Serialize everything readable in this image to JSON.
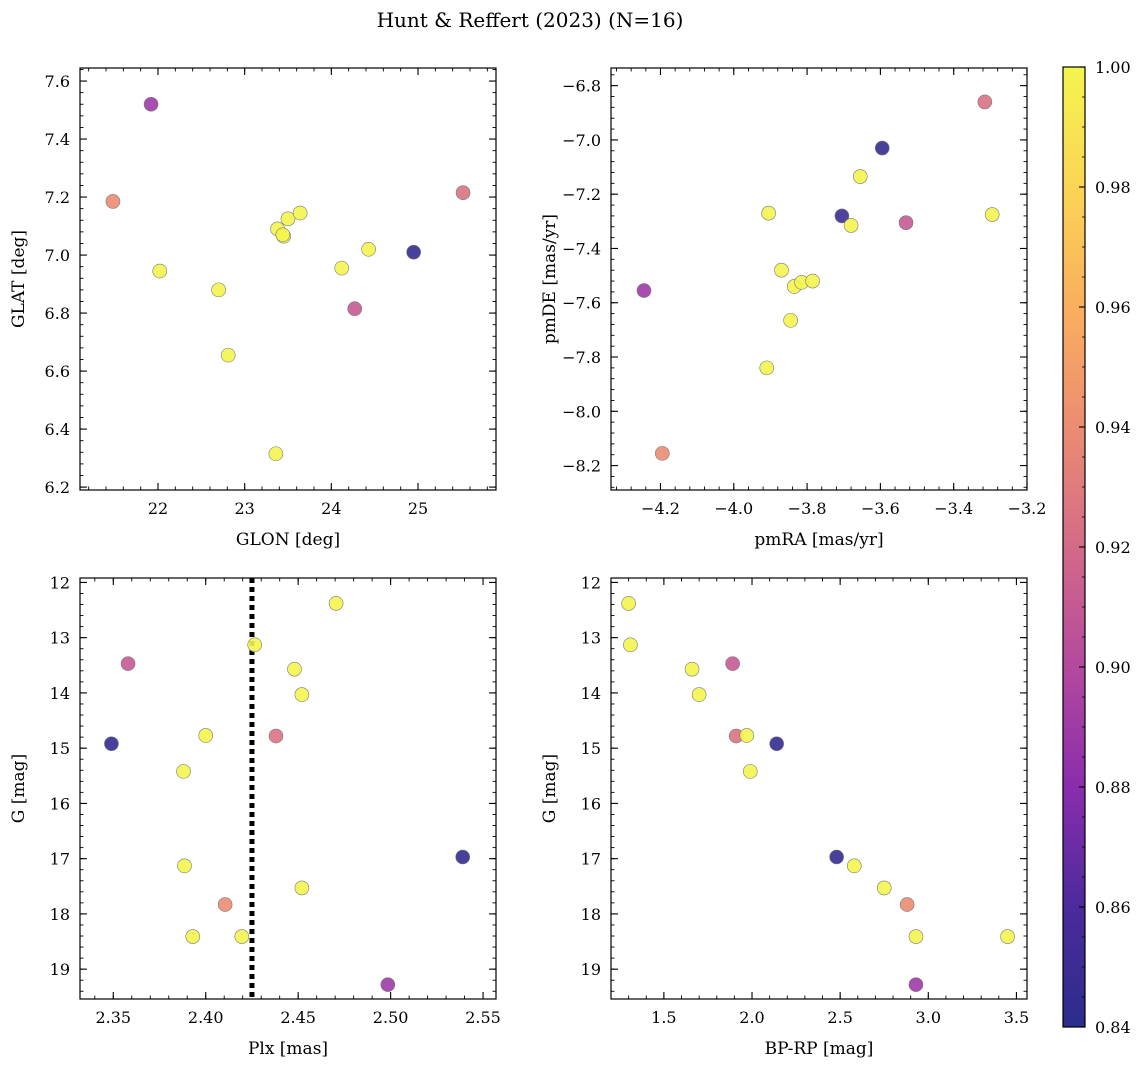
{
  "figure": {
    "title": "Hunt & Reffert (2023) (N=16)",
    "colorbar": {
      "min": 0.84,
      "max": 1.0,
      "ticks": [
        0.84,
        0.86,
        0.88,
        0.9,
        0.92,
        0.94,
        0.96,
        0.98,
        1.0
      ],
      "tick_labels": [
        "0.84",
        "0.86",
        "0.88",
        "0.90",
        "0.92",
        "0.94",
        "0.96",
        "0.98",
        "1.00"
      ],
      "colormap": "plasma"
    },
    "ref_line_color": "#000000"
  },
  "chart_data": [
    {
      "type": "scatter",
      "xlabel": "GLON [deg]",
      "ylabel": "GLAT [deg]",
      "xlim": [
        21.1,
        25.9
      ],
      "ylim": [
        6.19,
        7.645
      ],
      "xticks": [
        22,
        23,
        24,
        25
      ],
      "xtick_labels": [
        "22",
        "23",
        "24",
        "25"
      ],
      "yticks": [
        6.2,
        6.4,
        6.6,
        6.8,
        7.0,
        7.2,
        7.4,
        7.6
      ],
      "ytick_labels": [
        "6.2",
        "6.4",
        "6.6",
        "6.8",
        "7.0",
        "7.2",
        "7.4",
        "7.6"
      ],
      "points": [
        {
          "x": 21.92,
          "y": 7.52,
          "c": 0.89
        },
        {
          "x": 21.48,
          "y": 7.185,
          "c": 0.94
        },
        {
          "x": 25.52,
          "y": 7.215,
          "c": 0.925
        },
        {
          "x": 22.02,
          "y": 6.945,
          "c": 1.0
        },
        {
          "x": 22.7,
          "y": 6.88,
          "c": 1.0
        },
        {
          "x": 22.81,
          "y": 6.655,
          "c": 1.0
        },
        {
          "x": 23.36,
          "y": 6.315,
          "c": 1.0
        },
        {
          "x": 23.38,
          "y": 7.09,
          "c": 1.0
        },
        {
          "x": 23.5,
          "y": 7.125,
          "c": 1.0
        },
        {
          "x": 23.64,
          "y": 7.145,
          "c": 1.0
        },
        {
          "x": 23.45,
          "y": 7.065,
          "c": 1.0
        },
        {
          "x": 24.12,
          "y": 6.955,
          "c": 1.0
        },
        {
          "x": 24.43,
          "y": 7.02,
          "c": 1.0
        },
        {
          "x": 24.27,
          "y": 6.815,
          "c": 0.91
        },
        {
          "x": 24.95,
          "y": 7.01,
          "c": 0.845
        },
        {
          "x": 23.44,
          "y": 7.07,
          "c": 1.0
        }
      ]
    },
    {
      "type": "scatter",
      "xlabel": "pmRA [mas/yr]",
      "ylabel": "pmDE [mas/yr]",
      "xlim": [
        -4.335,
        -3.2
      ],
      "ylim": [
        -8.29,
        -6.735
      ],
      "xticks": [
        -4.2,
        -4.0,
        -3.8,
        -3.6,
        -3.4,
        -3.2
      ],
      "xtick_labels": [
        "−4.2",
        "−4.0",
        "−3.8",
        "−3.6",
        "−3.4",
        "−3.2"
      ],
      "yticks": [
        -8.2,
        -8.0,
        -7.8,
        -7.6,
        -7.4,
        -7.2,
        -7.0,
        -6.8
      ],
      "ytick_labels": [
        "−8.2",
        "−8.0",
        "−7.8",
        "−7.6",
        "−7.4",
        "−7.2",
        "−7.0",
        "−6.8"
      ],
      "points": [
        {
          "x": -3.315,
          "y": -6.86,
          "c": 0.925
        },
        {
          "x": -3.595,
          "y": -7.03,
          "c": 0.845
        },
        {
          "x": -3.655,
          "y": -7.135,
          "c": 1.0
        },
        {
          "x": -3.905,
          "y": -7.27,
          "c": 1.0
        },
        {
          "x": -3.705,
          "y": -7.28,
          "c": 0.85
        },
        {
          "x": -3.53,
          "y": -7.305,
          "c": 0.91
        },
        {
          "x": -3.295,
          "y": -7.275,
          "c": 1.0
        },
        {
          "x": -3.68,
          "y": -7.315,
          "c": 1.0
        },
        {
          "x": -4.245,
          "y": -7.555,
          "c": 0.89
        },
        {
          "x": -3.87,
          "y": -7.48,
          "c": 1.0
        },
        {
          "x": -3.835,
          "y": -7.54,
          "c": 1.0
        },
        {
          "x": -3.815,
          "y": -7.525,
          "c": 1.0
        },
        {
          "x": -3.785,
          "y": -7.52,
          "c": 1.0
        },
        {
          "x": -3.845,
          "y": -7.665,
          "c": 1.0
        },
        {
          "x": -3.91,
          "y": -7.84,
          "c": 1.0
        },
        {
          "x": -4.195,
          "y": -8.155,
          "c": 0.94
        }
      ]
    },
    {
      "type": "scatter",
      "xlabel": "Plx [mas]",
      "ylabel": "G [mag]",
      "xlim": [
        2.332,
        2.557
      ],
      "ylim": [
        19.54,
        11.92
      ],
      "y_inverted": true,
      "vline": 2.425,
      "xticks": [
        2.35,
        2.4,
        2.45,
        2.5,
        2.55
      ],
      "xtick_labels": [
        "2.35",
        "2.40",
        "2.45",
        "2.50",
        "2.55"
      ],
      "yticks": [
        12,
        13,
        14,
        15,
        16,
        17,
        18,
        19
      ],
      "ytick_labels": [
        "12",
        "13",
        "14",
        "15",
        "16",
        "17",
        "18",
        "19"
      ],
      "points": [
        {
          "x": 2.4705,
          "y": 12.38,
          "c": 1.0
        },
        {
          "x": 2.4265,
          "y": 13.13,
          "c": 1.0
        },
        {
          "x": 2.358,
          "y": 13.47,
          "c": 0.91
        },
        {
          "x": 2.448,
          "y": 13.57,
          "c": 1.0
        },
        {
          "x": 2.452,
          "y": 14.03,
          "c": 1.0
        },
        {
          "x": 2.4,
          "y": 14.77,
          "c": 1.0
        },
        {
          "x": 2.438,
          "y": 14.78,
          "c": 0.925
        },
        {
          "x": 2.349,
          "y": 14.92,
          "c": 0.845
        },
        {
          "x": 2.388,
          "y": 15.42,
          "c": 1.0
        },
        {
          "x": 2.539,
          "y": 16.97,
          "c": 0.845
        },
        {
          "x": 2.3885,
          "y": 17.13,
          "c": 1.0
        },
        {
          "x": 2.452,
          "y": 17.53,
          "c": 1.0
        },
        {
          "x": 2.4105,
          "y": 17.83,
          "c": 0.94
        },
        {
          "x": 2.393,
          "y": 18.41,
          "c": 1.0
        },
        {
          "x": 2.4195,
          "y": 18.41,
          "c": 1.0
        },
        {
          "x": 2.4985,
          "y": 19.28,
          "c": 0.89
        }
      ]
    },
    {
      "type": "scatter",
      "xlabel": "BP-RP [mag]",
      "ylabel": "G [mag]",
      "xlim": [
        1.2,
        3.56
      ],
      "ylim": [
        19.54,
        11.92
      ],
      "y_inverted": true,
      "xticks": [
        1.5,
        2.0,
        2.5,
        3.0,
        3.5
      ],
      "xtick_labels": [
        "1.5",
        "2.0",
        "2.5",
        "3.0",
        "3.5"
      ],
      "yticks": [
        12,
        13,
        14,
        15,
        16,
        17,
        18,
        19
      ],
      "ytick_labels": [
        "12",
        "13",
        "14",
        "15",
        "16",
        "17",
        "18",
        "19"
      ],
      "points": [
        {
          "x": 1.3,
          "y": 12.38,
          "c": 1.0
        },
        {
          "x": 1.31,
          "y": 13.13,
          "c": 1.0
        },
        {
          "x": 1.89,
          "y": 13.47,
          "c": 0.91
        },
        {
          "x": 1.66,
          "y": 13.57,
          "c": 1.0
        },
        {
          "x": 1.7,
          "y": 14.03,
          "c": 1.0
        },
        {
          "x": 1.91,
          "y": 14.78,
          "c": 0.925
        },
        {
          "x": 1.97,
          "y": 14.77,
          "c": 1.0
        },
        {
          "x": 2.14,
          "y": 14.92,
          "c": 0.845
        },
        {
          "x": 1.99,
          "y": 15.42,
          "c": 1.0
        },
        {
          "x": 2.48,
          "y": 16.97,
          "c": 0.845
        },
        {
          "x": 2.58,
          "y": 17.13,
          "c": 1.0
        },
        {
          "x": 2.75,
          "y": 17.53,
          "c": 1.0
        },
        {
          "x": 2.88,
          "y": 17.83,
          "c": 0.94
        },
        {
          "x": 2.93,
          "y": 18.41,
          "c": 1.0
        },
        {
          "x": 3.45,
          "y": 18.41,
          "c": 1.0
        },
        {
          "x": 2.93,
          "y": 19.28,
          "c": 0.89
        }
      ]
    }
  ]
}
